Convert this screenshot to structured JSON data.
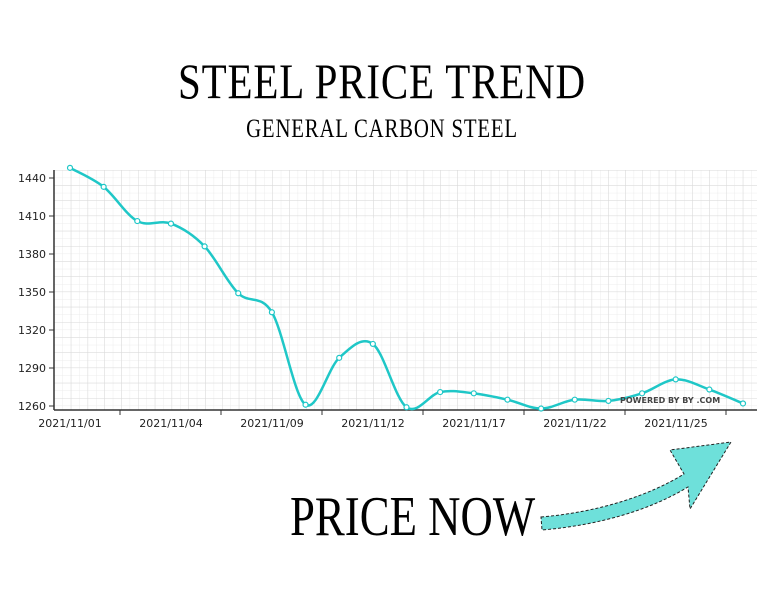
{
  "header": {
    "title": "STEEL PRICE TREND",
    "subtitle": "GENERAL CARBON STEEL"
  },
  "callout": {
    "label": "PRICE NOW",
    "arrow_icon": "curved-arrow-up-right"
  },
  "watermark": "POWERED BY BY      .COM",
  "colors": {
    "line": "#1fc7c7",
    "arrow_fill": "#6ee0da",
    "grid": "#e3e3e3",
    "axis": "#333333"
  },
  "chart_data": {
    "type": "line",
    "title": "STEEL PRICE TREND",
    "subtitle": "GENERAL CARBON STEEL",
    "xlabel": "",
    "ylabel": "",
    "ylim": [
      1260,
      1450
    ],
    "yticks": [
      1260,
      1290,
      1320,
      1350,
      1380,
      1410,
      1440
    ],
    "xtick_labels": [
      "2021/11/01",
      "2021/11/04",
      "2021/11/09",
      "2021/11/12",
      "2021/11/17",
      "2021/11/22",
      "2021/11/25"
    ],
    "grid": true,
    "legend": null,
    "series": [
      {
        "name": "General Carbon Steel",
        "values": [
          1448,
          1433,
          1406,
          1404,
          1386,
          1349,
          1334,
          1261,
          1298,
          1309,
          1259,
          1271,
          1270,
          1265,
          1258,
          1265,
          1264,
          1270,
          1281,
          1273,
          1262
        ]
      }
    ]
  }
}
